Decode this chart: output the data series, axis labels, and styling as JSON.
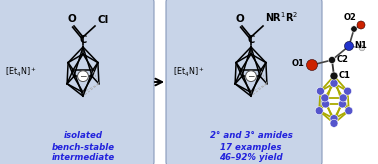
{
  "box_facecolor": "#c8d4e8",
  "box_edgecolor": "#8899bb",
  "blue_text": "#2222dd",
  "text1_line1": "isolated",
  "text1_line2": "bench-stable",
  "text1_line3": "intermediate",
  "text2_line1": "2° and 3° amides",
  "text2_line2": "17 examples",
  "text2_line3": "46–92% yield",
  "crystal_bond_color": "#aaaa00",
  "crystal_boron_color": "#5555cc",
  "label_O2": "O2",
  "label_N1": "N1",
  "label_O1": "O1",
  "label_C2": "C2",
  "label_C1": "C1",
  "o_color": "#cc2200",
  "n_color": "#2233cc",
  "c_color": "#111111",
  "white_atom": "#dddddd"
}
